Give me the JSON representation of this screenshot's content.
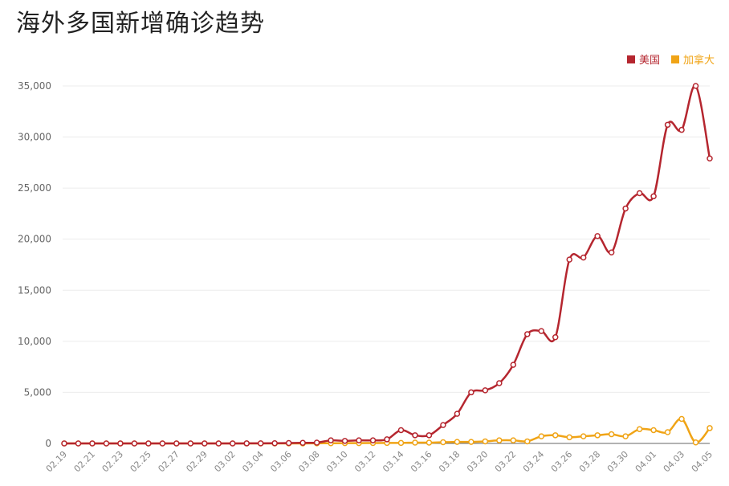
{
  "chart_data": {
    "type": "line",
    "title": "海外多国新增确诊趋势",
    "xlabel": "",
    "ylabel": "",
    "ylim": [
      0,
      35000
    ],
    "yticks": [
      0,
      5000,
      10000,
      15000,
      20000,
      25000,
      30000,
      35000
    ],
    "ytick_labels": [
      "0",
      "5,000",
      "10,000",
      "15,000",
      "20,000",
      "25,000",
      "30,000",
      "35,000"
    ],
    "grid": true,
    "legend_position": "top-right",
    "categories": [
      "02.19",
      "02.20",
      "02.21",
      "02.22",
      "02.23",
      "02.24",
      "02.25",
      "02.26",
      "02.27",
      "02.28",
      "02.29",
      "03.01",
      "03.02",
      "03.03",
      "03.04",
      "03.05",
      "03.06",
      "03.07",
      "03.08",
      "03.09",
      "03.10",
      "03.11",
      "03.12",
      "03.13",
      "03.14",
      "03.15",
      "03.16",
      "03.17",
      "03.18",
      "03.19",
      "03.20",
      "03.21",
      "03.22",
      "03.23",
      "03.24",
      "03.25",
      "03.26",
      "03.27",
      "03.28",
      "03.29",
      "03.30",
      "03.31",
      "04.01",
      "04.02",
      "04.03",
      "04.04",
      "04.05"
    ],
    "xtick_labels": [
      "02.19",
      "02.21",
      "02.23",
      "02.25",
      "02.27",
      "02.29",
      "03.02",
      "03.04",
      "03.06",
      "03.08",
      "03.10",
      "03.12",
      "03.14",
      "03.16",
      "03.18",
      "03.20",
      "03.22",
      "03.24",
      "03.26",
      "03.28",
      "03.30",
      "04.01",
      "04.03",
      "04.05"
    ],
    "series": [
      {
        "name": "美国",
        "color": "#b5262f",
        "values": [
          0,
          0,
          0,
          0,
          0,
          0,
          0,
          0,
          0,
          0,
          0,
          0,
          0,
          5,
          10,
          20,
          40,
          60,
          80,
          300,
          250,
          300,
          300,
          400,
          1300,
          800,
          800,
          1800,
          2900,
          5000,
          5200,
          5900,
          7700,
          10700,
          11000,
          10400,
          18000,
          18200,
          20300,
          18700,
          23000,
          24500,
          24200,
          31200,
          30700,
          35000,
          27900
        ]
      },
      {
        "name": "加拿大",
        "color": "#f0a416",
        "values": [
          0,
          0,
          0,
          0,
          0,
          0,
          0,
          0,
          0,
          0,
          0,
          0,
          0,
          0,
          0,
          0,
          0,
          0,
          10,
          20,
          30,
          30,
          40,
          50,
          50,
          80,
          80,
          120,
          150,
          150,
          200,
          300,
          300,
          200,
          700,
          800,
          600,
          700,
          800,
          900,
          700,
          1400,
          1300,
          1100,
          2400,
          100,
          1500
        ]
      }
    ]
  }
}
